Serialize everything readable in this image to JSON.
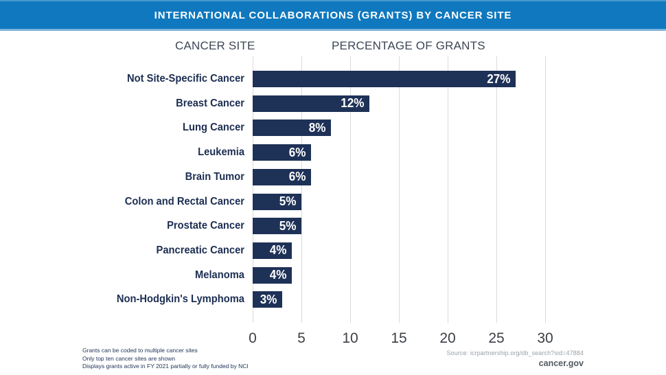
{
  "header": {
    "title": "INTERNATIONAL COLLABORATIONS (GRANTS) BY CANCER SITE",
    "bg_color": "#0f78be",
    "text_color": "#ffffff"
  },
  "columns": {
    "left_header": "CANCER SITE",
    "right_header": "PERCENTAGE OF GRANTS"
  },
  "chart_data": {
    "type": "bar",
    "orientation": "horizontal",
    "title": "International Collaborations (Grants) by Cancer Site",
    "categories": [
      "Not Site-Specific Cancer",
      "Breast Cancer",
      "Lung Cancer",
      "Leukemia",
      "Brain Tumor",
      "Colon and Rectal Cancer",
      "Prostate Cancer",
      "Pancreatic Cancer",
      "Melanoma",
      "Non-Hodgkin's Lymphoma"
    ],
    "values": [
      27,
      12,
      8,
      6,
      6,
      5,
      5,
      4,
      4,
      3
    ],
    "value_labels": [
      "27%",
      "12%",
      "8%",
      "6%",
      "6%",
      "5%",
      "5%",
      "4%",
      "4%",
      "3%"
    ],
    "xlabel": "PERCENTAGE OF GRANTS",
    "ylabel": "CANCER SITE",
    "x_ticks": [
      0,
      5,
      10,
      15,
      20,
      25,
      30
    ],
    "xlim": [
      0,
      30
    ],
    "grid": true,
    "legend": "none",
    "bar_color": "#1e3157",
    "value_label_color": "#ffffff",
    "category_label_color": "#1c2e52",
    "gridline_color": "#dadada"
  },
  "footnotes": [
    "Grants can be coded to multiple cancer sites",
    "Only top ten cancer sites are shown",
    "Displays grants active in FY 2021 partially or fully funded by NCI"
  ],
  "source": {
    "text": "Source: icrpartnership.org/db_search?sid=47884",
    "brand": "cancer.gov"
  }
}
